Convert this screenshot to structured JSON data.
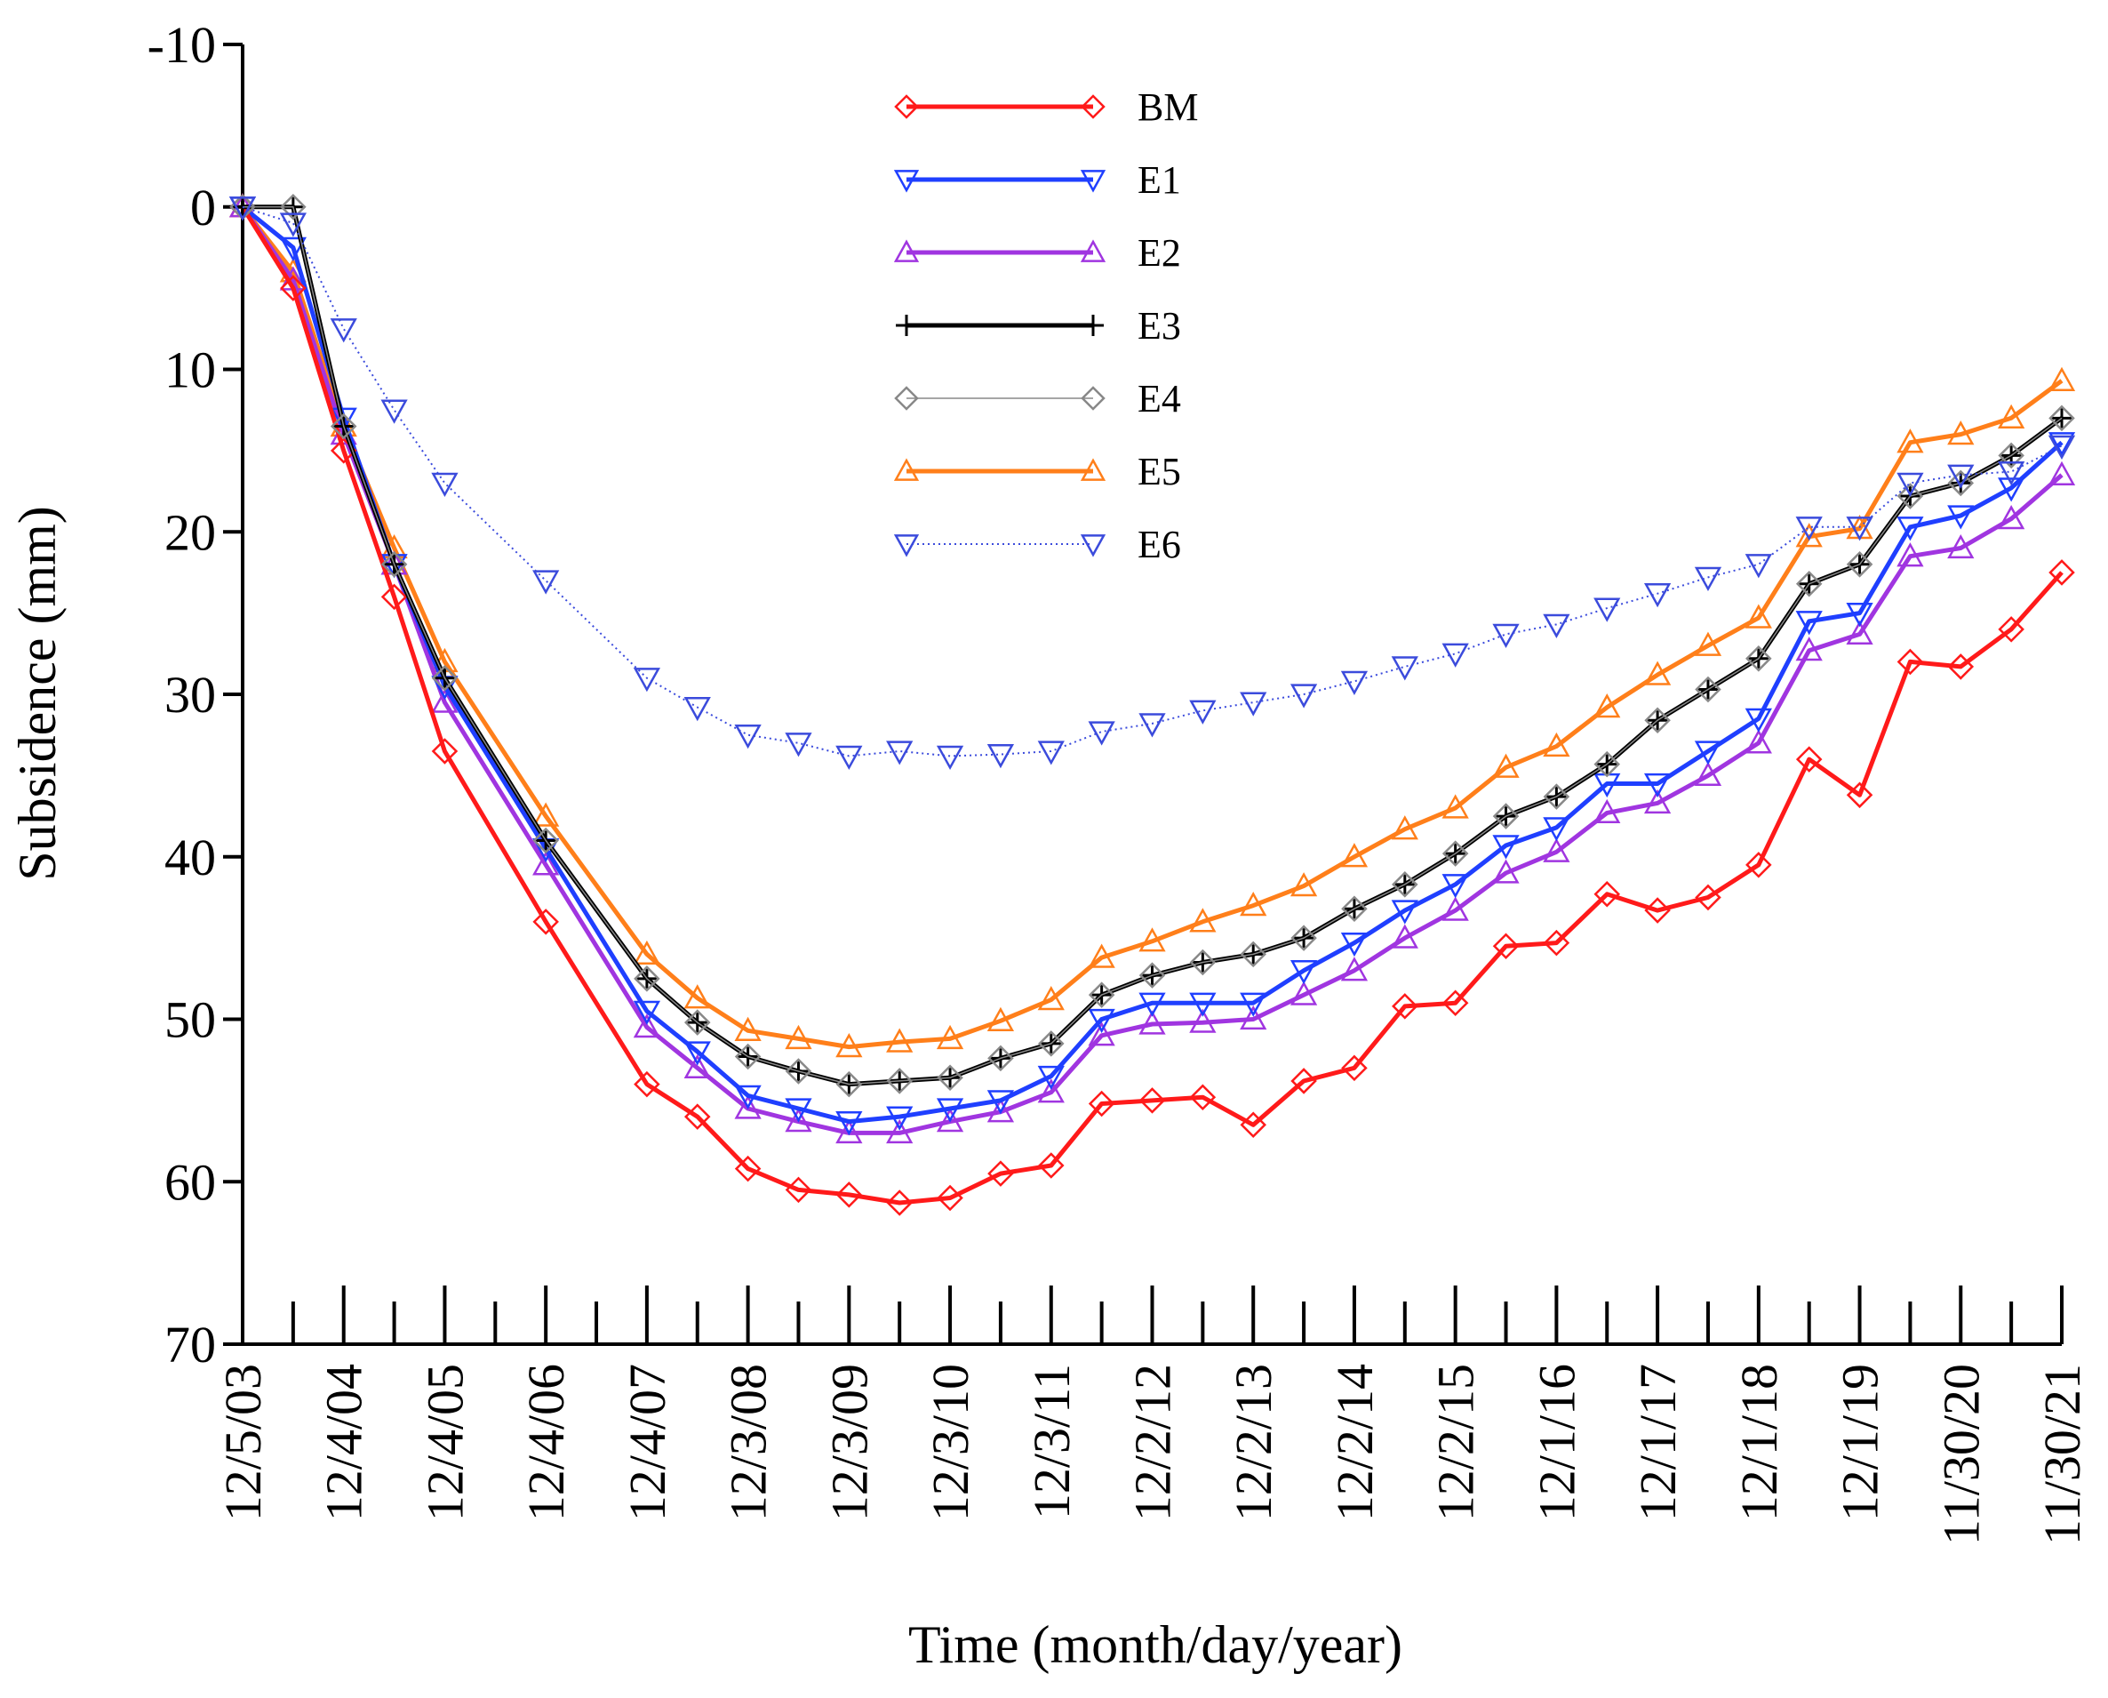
{
  "chart_data": {
    "type": "line",
    "title": "",
    "xlabel": "Time (month/day/year)",
    "ylabel": "Subsidence (mm)",
    "ylim": [
      -10,
      70
    ],
    "y_inverted": true,
    "yticks": [
      -10,
      0,
      10,
      20,
      30,
      40,
      50,
      60,
      70
    ],
    "grid": false,
    "legend_position": "top-center",
    "x_tick_labels": [
      "12/5/03",
      "12/4/04",
      "12/4/05",
      "12/4/06",
      "12/4/07",
      "12/3/08",
      "12/3/09",
      "12/3/10",
      "12/3/11",
      "12/2/12",
      "12/2/13",
      "12/2/14",
      "12/2/15",
      "12/1/16",
      "12/1/17",
      "12/1/18",
      "12/1/19",
      "11/30/20",
      "11/30/21"
    ],
    "x_tick_positions": [
      0,
      1,
      2,
      3,
      4,
      5,
      6,
      7,
      8,
      9,
      10,
      11,
      12,
      13,
      14,
      15,
      16,
      17,
      18
    ],
    "xlim": [
      0,
      18
    ],
    "x": [
      0,
      0.5,
      1,
      1.5,
      2,
      3,
      4,
      4.5,
      5,
      5.5,
      6,
      6.5,
      7,
      7.5,
      8,
      8.5,
      9,
      9.5,
      10,
      10.5,
      11,
      11.5,
      12,
      12.5,
      13,
      13.5,
      14,
      14.5,
      15,
      15.5,
      16,
      16.5,
      17,
      17.5,
      18
    ],
    "series": [
      {
        "name": "BM",
        "color": "#ff1a1a",
        "marker": "diamond",
        "style": "solid-thick",
        "values": [
          0,
          5,
          15,
          24,
          33.5,
          44,
          54,
          56,
          59.2,
          60.5,
          60.8,
          61.3,
          61,
          59.5,
          59,
          55.2,
          55,
          54.8,
          56.5,
          53.8,
          53,
          49.2,
          49,
          45.5,
          45.3,
          42.3,
          43.3,
          42.5,
          40.5,
          34,
          36.2,
          28,
          28.3,
          26,
          22.5
        ]
      },
      {
        "name": "E1",
        "color": "#1f3fff",
        "marker": "triangle-down",
        "style": "solid-thick",
        "values": [
          0,
          2.5,
          13,
          22,
          29.5,
          39.5,
          49.5,
          52,
          54.7,
          55.5,
          56.3,
          56,
          55.5,
          55,
          53.5,
          50,
          49,
          49,
          49,
          47,
          45.3,
          43.3,
          41.7,
          39.3,
          38.2,
          35.5,
          35.5,
          33.5,
          31.5,
          25.5,
          25,
          19.7,
          19,
          17.3,
          14.5
        ]
      },
      {
        "name": "E2",
        "color": "#a035e0",
        "marker": "triangle-up",
        "style": "solid-thick",
        "values": [
          0,
          4.5,
          14,
          22,
          30.5,
          40.5,
          50.5,
          53,
          55.5,
          56.3,
          57,
          57,
          56.3,
          55.7,
          54.5,
          51,
          50.3,
          50.2,
          50,
          48.5,
          47,
          45,
          43.3,
          41,
          39.7,
          37.3,
          36.7,
          35,
          33,
          27.3,
          26.3,
          21.5,
          21,
          19.2,
          16.5
        ]
      },
      {
        "name": "E3",
        "color": "#000000",
        "marker": "plus",
        "style": "solid-thick",
        "values": [
          0,
          0,
          13.5,
          22,
          29,
          39,
          47.5,
          50.2,
          52.3,
          53.2,
          54,
          53.8,
          53.6,
          52.4,
          51.5,
          48.5,
          47.3,
          46.5,
          46,
          45,
          43.2,
          41.7,
          39.8,
          37.5,
          36.3,
          34.3,
          31.6,
          29.7,
          27.8,
          23.2,
          22,
          17.8,
          17,
          15.3,
          13
        ]
      },
      {
        "name": "E4",
        "color": "#888888",
        "marker": "diamond",
        "style": "thin",
        "values": [
          0,
          0,
          13.5,
          22,
          29,
          39,
          47.5,
          50.2,
          52.3,
          53.2,
          54,
          53.8,
          53.6,
          52.4,
          51.5,
          48.5,
          47.3,
          46.5,
          46,
          45,
          43.2,
          41.7,
          39.8,
          37.5,
          36.3,
          34.3,
          31.6,
          29.7,
          27.8,
          23.2,
          22,
          17.8,
          17,
          15.3,
          13
        ]
      },
      {
        "name": "E5",
        "color": "#ff7f1a",
        "marker": "triangle-up",
        "style": "solid-thick",
        "values": [
          0,
          4,
          13.5,
          21,
          28,
          37.5,
          46,
          48.7,
          50.7,
          51.2,
          51.7,
          51.4,
          51.2,
          50.1,
          48.8,
          46.2,
          45.2,
          44,
          43,
          41.8,
          40,
          38.3,
          37,
          34.5,
          33.2,
          30.8,
          28.8,
          27,
          25.3,
          20.3,
          19.8,
          14.5,
          14,
          13,
          10.7
        ]
      },
      {
        "name": "E6",
        "color": "#3b4bdc",
        "marker": "triangle-down",
        "style": "dotted-thin",
        "values": [
          0,
          1,
          7.5,
          12.5,
          17,
          23,
          29,
          30.8,
          32.5,
          33,
          33.8,
          33.5,
          33.8,
          33.7,
          33.5,
          32.3,
          31.8,
          31,
          30.5,
          30,
          29.2,
          28.3,
          27.5,
          26.3,
          25.7,
          24.7,
          23.8,
          22.8,
          22,
          19.7,
          19.7,
          17,
          16.5,
          16.3,
          14.7
        ]
      }
    ]
  }
}
